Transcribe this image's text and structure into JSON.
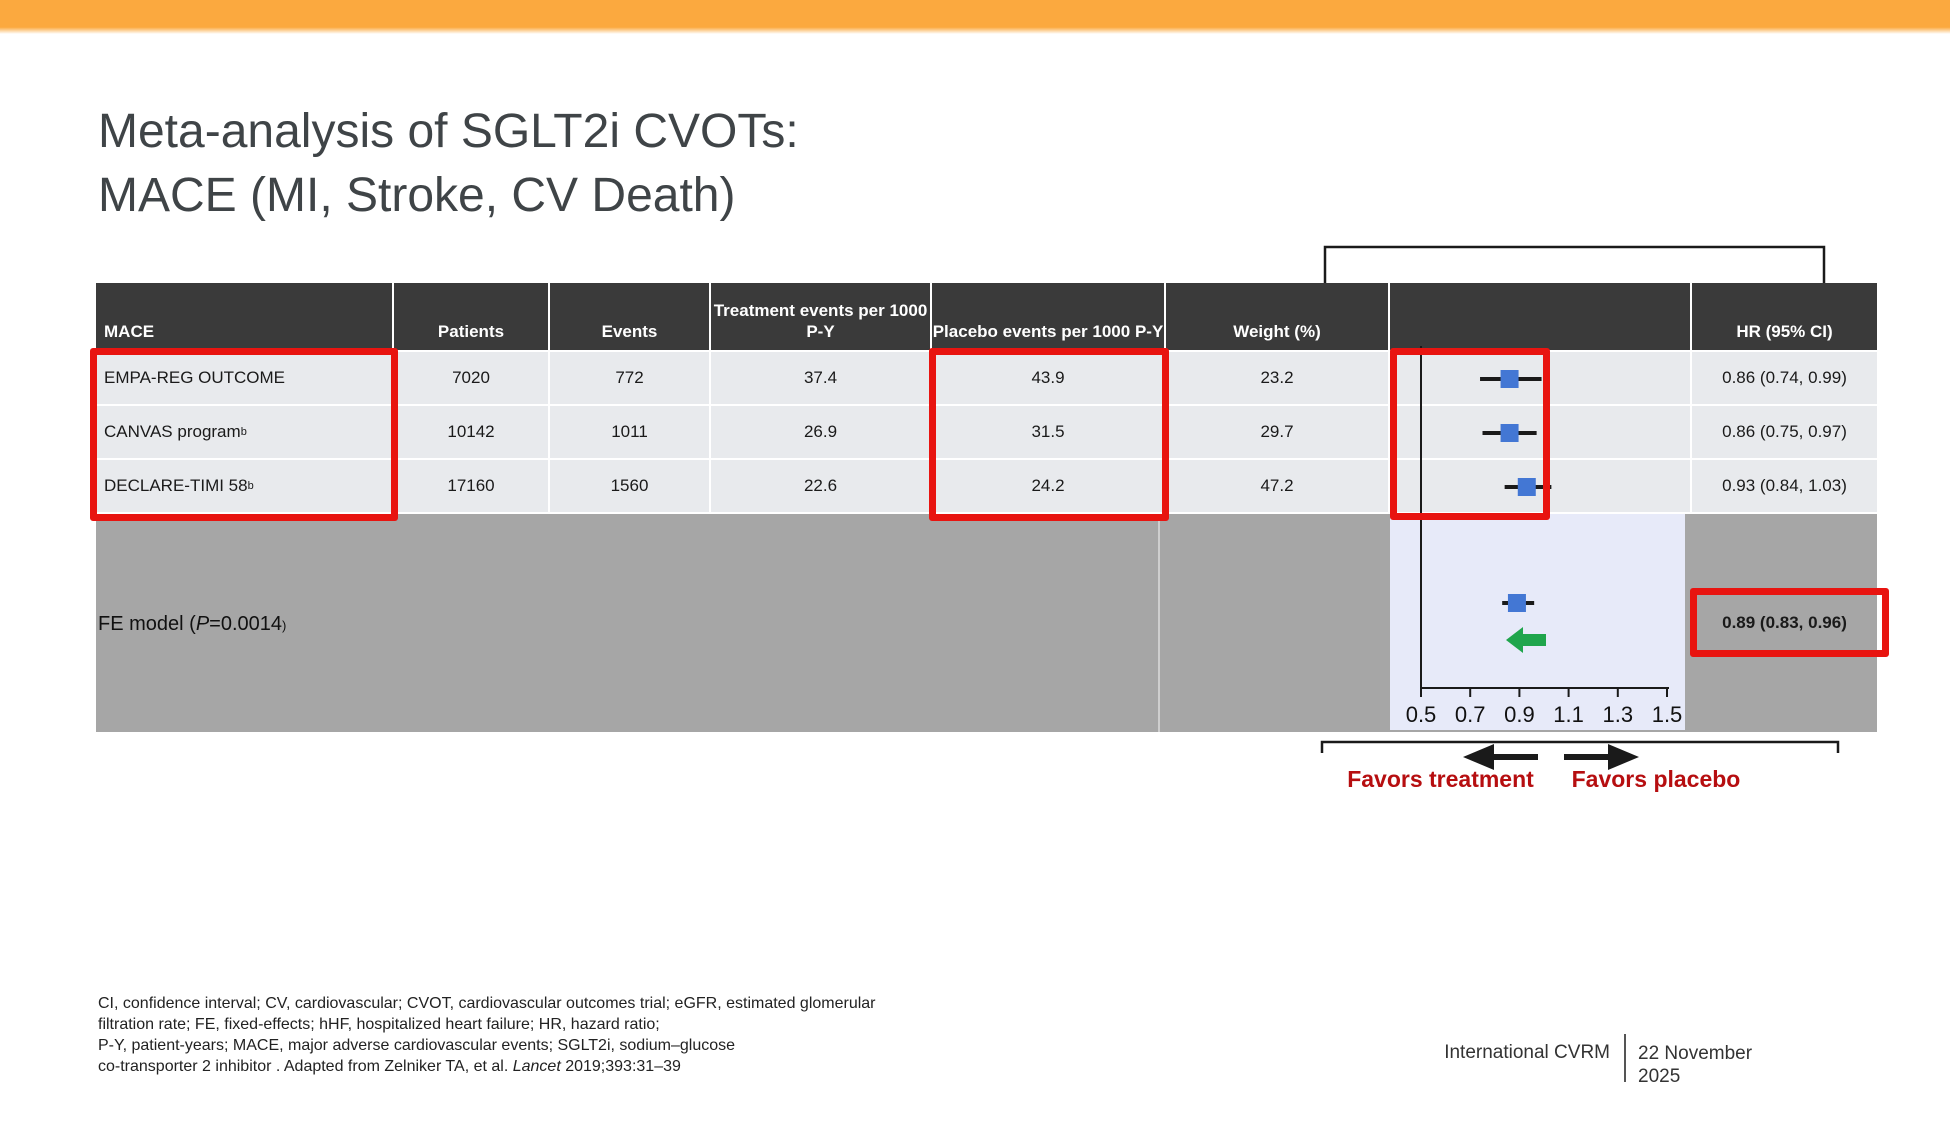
{
  "slide": {
    "title_lines": [
      "Meta-analysis of SGLT2i CVOTs:",
      "MACE (MI, Stroke, CV Death)"
    ],
    "footnote_lines": [
      "CI, confidence interval; CV, cardiovascular; CVOT, cardiovascular outcomes trial; eGFR, estimated glomerular",
      "filtration rate; FE, fixed-effects; hHF, hospitalized heart failure; HR, hazard ratio;",
      "P-Y, patient-years; MACE, major adverse cardiovascular events; SGLT2i, sodium–glucose"
    ],
    "footnote_line4": {
      "before": "co-transporter 2 inhibitor . Adapted from Zelniker TA, et al. ",
      "italic": "Lancet",
      "after": " 2019;393:31–39"
    },
    "footer": {
      "org": "International CVRM",
      "date_line1": "22 November",
      "date_line2": "2025"
    }
  },
  "table": {
    "headers": [
      "MACE",
      "Patients",
      "Events",
      "Treatment events per 1000 P-Y",
      "Placebo events per 1000 P-Y",
      "Weight (%)",
      "",
      "HR (95% CI)"
    ],
    "rows": [
      {
        "name": "EMPA-REG OUTCOME",
        "sup": "",
        "patients": "7020",
        "events": "772",
        "treatment": "37.4",
        "placebo": "43.9",
        "weight": "23.2",
        "hr": "0.86 (0.74, 0.99)"
      },
      {
        "name": "CANVAS program",
        "sup": "b",
        "patients": "10142",
        "events": "1011",
        "treatment": "26.9",
        "placebo": "31.5",
        "weight": "29.7",
        "hr": "0.86 (0.75, 0.97)"
      },
      {
        "name": "DECLARE-TIMI 58",
        "sup": "b",
        "patients": "17160",
        "events": "1560",
        "treatment": "22.6",
        "placebo": "24.2",
        "weight": "47.2",
        "hr": "0.93 (0.84, 1.03)"
      }
    ],
    "summary": {
      "label_prefix": "FE model (",
      "label_p": "P",
      "label_value": "=0.0014",
      "label_close": ")",
      "hr": "0.89 (0.83, 0.96)"
    }
  },
  "forest": {
    "favors_left": "Favors treatment",
    "favors_right": "Favors placebo"
  },
  "chart_data": {
    "type": "forest",
    "xlim": [
      0.5,
      1.5
    ],
    "axis_ticks": [
      0.5,
      0.7,
      0.9,
      1.1,
      1.3,
      1.5
    ],
    "axis_tick_labels": [
      "0.5",
      "0.7",
      "0.9",
      "1.1",
      "1.3",
      "1.5"
    ],
    "studies": [
      {
        "name": "EMPA-REG OUTCOME",
        "hr": 0.86,
        "ci_low": 0.74,
        "ci_high": 0.99,
        "weight_pct": 23.2
      },
      {
        "name": "CANVAS program",
        "hr": 0.86,
        "ci_low": 0.75,
        "ci_high": 0.97,
        "weight_pct": 29.7
      },
      {
        "name": "DECLARE-TIMI 58",
        "hr": 0.93,
        "ci_low": 0.84,
        "ci_high": 1.03,
        "weight_pct": 47.2
      }
    ],
    "summary": {
      "name": "FE model",
      "p_value": "0.0014",
      "hr": 0.89,
      "ci_low": 0.83,
      "ci_high": 0.96
    }
  },
  "theme": {
    "orange": "#FBA93F",
    "header_bg": "#3A3A3A",
    "row_bg": "#E8EAED",
    "band_gray": "#A6A6A6",
    "plot_bg": "#E7EAF9",
    "marker_blue": "#4377D4",
    "green": "#1FA54C",
    "red_box": "#E81410",
    "dark_red": "#B60E10",
    "ink": "#1A1A1A",
    "title": "#3F4447"
  }
}
